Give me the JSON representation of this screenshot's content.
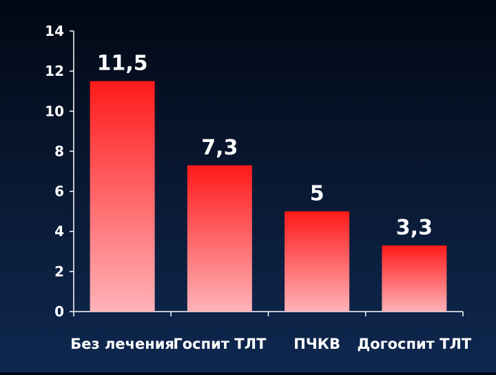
{
  "chart_data": {
    "type": "bar",
    "title": "",
    "xlabel": "",
    "ylabel": "",
    "categories": [
      "Без лечения",
      "Госпит ТЛТ",
      "ПЧКВ",
      "Догоспит ТЛТ"
    ],
    "values": [
      11.5,
      7.3,
      5,
      3.3
    ],
    "data_labels": [
      "11,5",
      "7,3",
      "5",
      "3,3"
    ],
    "ylim": [
      0,
      14
    ],
    "yticks": [
      0,
      2,
      4,
      6,
      8,
      10,
      12,
      14
    ],
    "ytick_labels": [
      "0",
      "2",
      "4",
      "6",
      "8",
      "10",
      "12",
      "14"
    ],
    "grid": false,
    "legend": "none",
    "colors": {
      "bar_top": "#ff1a1a",
      "bar_bottom": "#ffb3b8",
      "axis": "#ffffff",
      "text": "#ffffff"
    }
  }
}
